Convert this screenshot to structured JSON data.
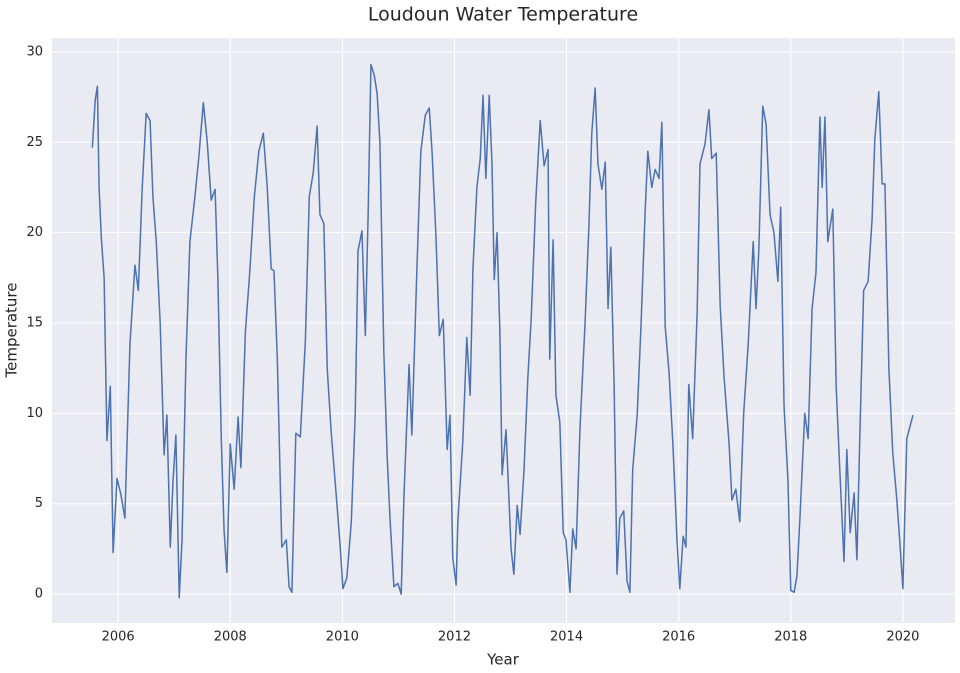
{
  "chart_data": {
    "type": "line",
    "title": "Loudoun Water Temperature",
    "x_label": "Year",
    "y_label": "Temperature",
    "x": [
      2005.54,
      2005.59,
      2005.63,
      2005.66,
      2005.7,
      2005.75,
      2005.8,
      2005.86,
      2005.91,
      2005.98,
      2006.05,
      2006.12,
      2006.21,
      2006.3,
      2006.36,
      2006.43,
      2006.5,
      2006.57,
      2006.62,
      2006.68,
      2006.75,
      2006.82,
      2006.87,
      2006.93,
      2006.98,
      2007.03,
      2007.09,
      2007.14,
      2007.21,
      2007.28,
      2007.37,
      2007.44,
      2007.52,
      2007.59,
      2007.66,
      2007.73,
      2007.78,
      2007.84,
      2007.89,
      2007.94,
      2008.0,
      2008.07,
      2008.14,
      2008.19,
      2008.27,
      2008.35,
      2008.43,
      2008.51,
      2008.59,
      2008.66,
      2008.73,
      2008.78,
      2008.84,
      2008.92,
      2009.0,
      2009.05,
      2009.1,
      2009.17,
      2009.25,
      2009.34,
      2009.41,
      2009.48,
      2009.55,
      2009.6,
      2009.67,
      2009.73,
      2009.8,
      2009.89,
      2009.96,
      2010.01,
      2010.08,
      2010.16,
      2010.23,
      2010.28,
      2010.35,
      2010.41,
      2010.46,
      2010.51,
      2010.57,
      2010.62,
      2010.67,
      2010.74,
      2010.8,
      2010.85,
      2010.92,
      2010.99,
      2011.05,
      2011.1,
      2011.19,
      2011.24,
      2011.33,
      2011.4,
      2011.48,
      2011.55,
      2011.6,
      2011.67,
      2011.73,
      2011.8,
      2011.87,
      2011.92,
      2011.97,
      2012.03,
      2012.06,
      2012.1,
      2012.15,
      2012.22,
      2012.28,
      2012.33,
      2012.4,
      2012.46,
      2012.51,
      2012.56,
      2012.62,
      2012.67,
      2012.71,
      2012.76,
      2012.81,
      2012.85,
      2012.92,
      2013.01,
      2013.06,
      2013.12,
      2013.17,
      2013.24,
      2013.31,
      2013.37,
      2013.45,
      2013.53,
      2013.6,
      2013.67,
      2013.7,
      2013.76,
      2013.81,
      2013.88,
      2013.94,
      2013.99,
      2014.06,
      2014.11,
      2014.17,
      2014.24,
      2014.33,
      2014.4,
      2014.45,
      2014.51,
      2014.56,
      2014.63,
      2014.69,
      2014.74,
      2014.79,
      2014.85,
      2014.9,
      2014.95,
      2015.02,
      2015.08,
      2015.13,
      2015.18,
      2015.26,
      2015.33,
      2015.4,
      2015.45,
      2015.52,
      2015.58,
      2015.65,
      2015.7,
      2015.76,
      2015.83,
      2015.9,
      2015.97,
      2016.02,
      2016.08,
      2016.13,
      2016.18,
      2016.25,
      2016.33,
      2016.38,
      2016.47,
      2016.54,
      2016.59,
      2016.67,
      2016.74,
      2016.81,
      2016.9,
      2016.95,
      2017.02,
      2017.09,
      2017.16,
      2017.24,
      2017.33,
      2017.38,
      2017.43,
      2017.5,
      2017.56,
      2017.63,
      2017.7,
      2017.77,
      2017.82,
      2017.88,
      2017.95,
      2018.0,
      2018.06,
      2018.11,
      2018.16,
      2018.25,
      2018.31,
      2018.38,
      2018.45,
      2018.52,
      2018.56,
      2018.61,
      2018.66,
      2018.75,
      2018.81,
      2018.88,
      2018.95,
      2019.0,
      2019.06,
      2019.13,
      2019.18,
      2019.23,
      2019.3,
      2019.38,
      2019.45,
      2019.5,
      2019.57,
      2019.63,
      2019.68,
      2019.75,
      2019.82,
      2019.89,
      2019.95,
      2020.0,
      2020.07,
      2020.18
    ],
    "values": [
      24.7,
      27.3,
      28.1,
      22.5,
      19.7,
      17.5,
      8.5,
      11.5,
      2.3,
      6.4,
      5.5,
      4.2,
      13.8,
      18.2,
      16.8,
      22.5,
      26.6,
      26.2,
      22,
      19.5,
      15,
      7.7,
      9.9,
      2.6,
      6.3,
      8.8,
      -0.2,
      3,
      13,
      19.5,
      22,
      24.2,
      27.2,
      25,
      21.8,
      22.4,
      17.4,
      8.6,
      3.5,
      1.2,
      8.3,
      5.8,
      9.8,
      7,
      14.5,
      17.9,
      22,
      24.5,
      25.5,
      22.5,
      18,
      17.9,
      13,
      2.6,
      3,
      0.4,
      0.1,
      8.9,
      8.7,
      14,
      22,
      23.3,
      25.9,
      21,
      20.5,
      12.5,
      9,
      5.5,
      2.7,
      0.3,
      0.9,
      4,
      10,
      19,
      20.1,
      14.3,
      21,
      29.3,
      28.7,
      27.7,
      25,
      13.4,
      7.6,
      4.2,
      0.4,
      0.6,
      0,
      5.5,
      12.7,
      8.8,
      18,
      24.5,
      26.5,
      26.9,
      24.5,
      19.8,
      14.3,
      15.2,
      8,
      9.9,
      2,
      0.5,
      4,
      6,
      8.5,
      14.2,
      11,
      18,
      22.5,
      24.1,
      27.6,
      23,
      27.6,
      23.8,
      17.4,
      20,
      14.5,
      6.6,
      9.1,
      2.5,
      1.1,
      4.9,
      3.3,
      6.8,
      12,
      15.3,
      21.7,
      26.2,
      23.7,
      24.6,
      13,
      19.6,
      11,
      9.5,
      3.4,
      3,
      0.1,
      3.6,
      2.5,
      9.2,
      15,
      20.5,
      25.5,
      28,
      23.8,
      22.4,
      23.9,
      15.8,
      19.2,
      11.3,
      1.1,
      4.2,
      4.6,
      0.7,
      0.1,
      6.9,
      9.9,
      15,
      21,
      24.5,
      22.5,
      23.5,
      23,
      26.1,
      14.8,
      12.2,
      8.1,
      3,
      0.3,
      3.2,
      2.6,
      11.6,
      8.6,
      15.6,
      23.8,
      24.9,
      26.8,
      24.1,
      24.4,
      16,
      12,
      8.3,
      5.2,
      5.8,
      4,
      10,
      13.8,
      19.5,
      15.8,
      19,
      27,
      26,
      21,
      20,
      17.3,
      21.4,
      10.4,
      6.3,
      0.2,
      0.1,
      1,
      4,
      10,
      8.6,
      15.8,
      17.8,
      26.4,
      22.5,
      26.4,
      19.5,
      21.3,
      11.5,
      6.5,
      1.8,
      8,
      3.4,
      5.6,
      1.9,
      8.5,
      16.8,
      17.3,
      20.7,
      25.2,
      27.8,
      22.7,
      22.7,
      12.5,
      7.8,
      5.3,
      2.7,
      0.3,
      8.6,
      9.9
    ],
    "color": "#4c72b0",
    "xlim": [
      2004.82,
      2020.93
    ],
    "xticks": [
      2006,
      2008,
      2010,
      2012,
      2014,
      2016,
      2018,
      2020
    ],
    "ylim": [
      -1.6,
      30.77
    ],
    "yticks": [
      0,
      5,
      10,
      15,
      20,
      25,
      30
    ],
    "grid": true
  }
}
